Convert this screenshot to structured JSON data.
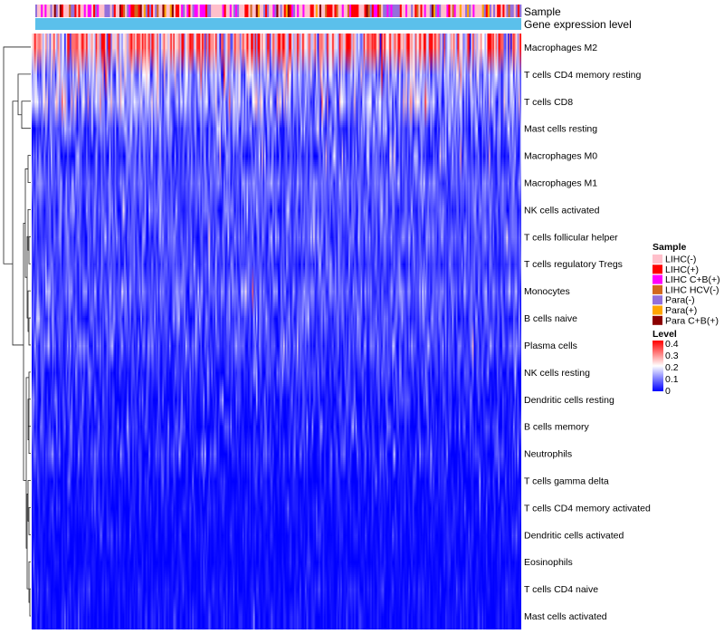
{
  "chart_data": {
    "type": "heatmap",
    "title": "",
    "annotations": [
      "Sample",
      "Gene expression level"
    ],
    "rows": [
      {
        "label": "Macrophages M2",
        "mean": 0.26,
        "spread": 0.12
      },
      {
        "label": "T cells CD4 memory resting",
        "mean": 0.12,
        "spread": 0.07
      },
      {
        "label": "T cells CD8",
        "mean": 0.12,
        "spread": 0.07
      },
      {
        "label": "Mast cells resting",
        "mean": 0.07,
        "spread": 0.05
      },
      {
        "label": "Macrophages M0",
        "mean": 0.05,
        "spread": 0.06
      },
      {
        "label": "Macrophages M1",
        "mean": 0.07,
        "spread": 0.03
      },
      {
        "label": "NK cells activated",
        "mean": 0.06,
        "spread": 0.04
      },
      {
        "label": "T cells follicular helper",
        "mean": 0.06,
        "spread": 0.04
      },
      {
        "label": "T cells regulatory  Tregs",
        "mean": 0.05,
        "spread": 0.03
      },
      {
        "label": "Monocytes",
        "mean": 0.07,
        "spread": 0.04
      },
      {
        "label": "B cells naive",
        "mean": 0.05,
        "spread": 0.04
      },
      {
        "label": "Plasma cells",
        "mean": 0.05,
        "spread": 0.04
      },
      {
        "label": "NK cells resting",
        "mean": 0.03,
        "spread": 0.04
      },
      {
        "label": "Dendritic cells resting",
        "mean": 0.02,
        "spread": 0.04
      },
      {
        "label": "B cells memory",
        "mean": 0.02,
        "spread": 0.04
      },
      {
        "label": "Neutrophils",
        "mean": 0.02,
        "spread": 0.04
      },
      {
        "label": "T cells gamma delta",
        "mean": 0.01,
        "spread": 0.03
      },
      {
        "label": "T cells CD4 memory activated",
        "mean": 0.01,
        "spread": 0.02
      },
      {
        "label": "Dendritic cells activated",
        "mean": 0.01,
        "spread": 0.02
      },
      {
        "label": "Eosinophils",
        "mean": 0.005,
        "spread": 0.015
      },
      {
        "label": "T cells CD4 naive",
        "mean": 0.01,
        "spread": 0.02
      },
      {
        "label": "Mast cells activated",
        "mean": 0.01,
        "spread": 0.02
      }
    ],
    "legends": {
      "sample": {
        "title": "Sample",
        "items": [
          {
            "label": "LIHC(-)",
            "color": "#ffc0cb"
          },
          {
            "label": "LIHC(+)",
            "color": "#ff0000"
          },
          {
            "label": "LIHC C+B(+)",
            "color": "#ff00ff"
          },
          {
            "label": "LIHC HCV(-)",
            "color": "#d2691e"
          },
          {
            "label": "Para(-)",
            "color": "#9370db"
          },
          {
            "label": "Para(+)",
            "color": "#ffa500"
          },
          {
            "label": "Para C+B(+)",
            "color": "#8b0000"
          }
        ]
      },
      "level": {
        "title": "Level",
        "ticks": [
          "0.4",
          "0.3",
          "0.2",
          "0.1",
          "0"
        ],
        "range": [
          0,
          0.4
        ],
        "colors": [
          "#0000ff",
          "#ffffff",
          "#ff0000"
        ]
      }
    },
    "gene_expression_color": "#5bc0eb"
  }
}
